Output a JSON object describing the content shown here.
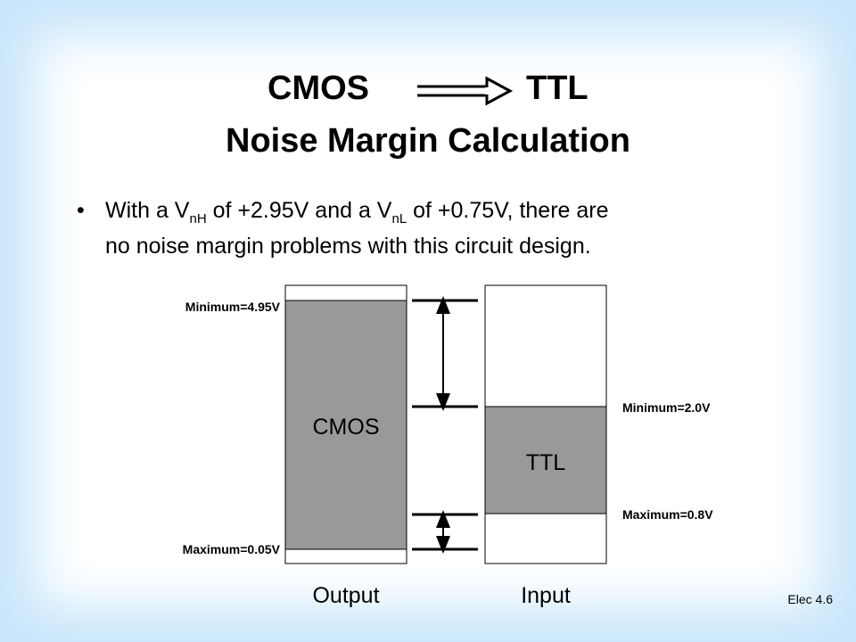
{
  "title": {
    "left": "CMOS",
    "right": "TTL",
    "subtitle": "Noise Margin Calculation"
  },
  "bullet": {
    "parts": [
      "With a V",
      "nH",
      " of +2.95V and a V",
      "nL",
      " of +0.75V, there are"
    ],
    "line2": "no noise margin problems with this circuit design."
  },
  "diagram": {
    "output_high_label": "Minimum=4.95V",
    "output_low_label": "Maximum=0.05V",
    "input_high_label": "Minimum=2.0V",
    "input_low_label": "Maximum=0.8V",
    "output_box": "CMOS",
    "input_box": "TTL",
    "output_caption": "Output",
    "input_caption": "Input"
  },
  "footer": "Elec 4.6"
}
